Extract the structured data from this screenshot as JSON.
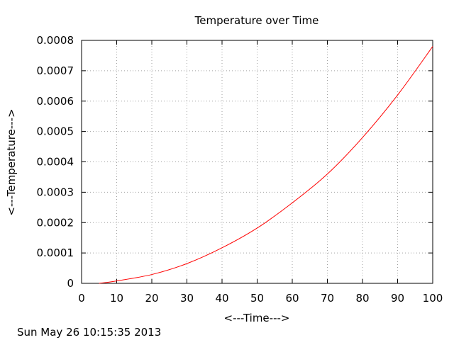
{
  "chart_data": {
    "type": "line",
    "title": "Temperature over Time",
    "xlabel": "<---Time--->",
    "ylabel": "<---Temperature--->",
    "xlim": [
      0,
      100
    ],
    "ylim": [
      0,
      0.0008
    ],
    "x_ticks": [
      "0",
      "10",
      "20",
      "30",
      "40",
      "50",
      "60",
      "70",
      "80",
      "90",
      "100"
    ],
    "y_ticks": [
      "0",
      "0.0001",
      "0.0002",
      "0.0003",
      "0.0004",
      "0.0005",
      "0.0006",
      "0.0007",
      "0.0008"
    ],
    "grid": true,
    "series": [
      {
        "color": "#ff0000",
        "x": [
          5,
          10,
          20,
          30,
          40,
          50,
          60,
          70,
          80,
          90,
          100
        ],
        "y": [
          0.0,
          8e-06,
          2.9e-05,
          6.5e-05,
          0.000117,
          0.000182,
          0.000265,
          0.00036,
          0.00048,
          0.00062,
          0.00078
        ]
      }
    ]
  },
  "footer": {
    "timestamp": "Sun May 26 10:15:35 2013"
  }
}
